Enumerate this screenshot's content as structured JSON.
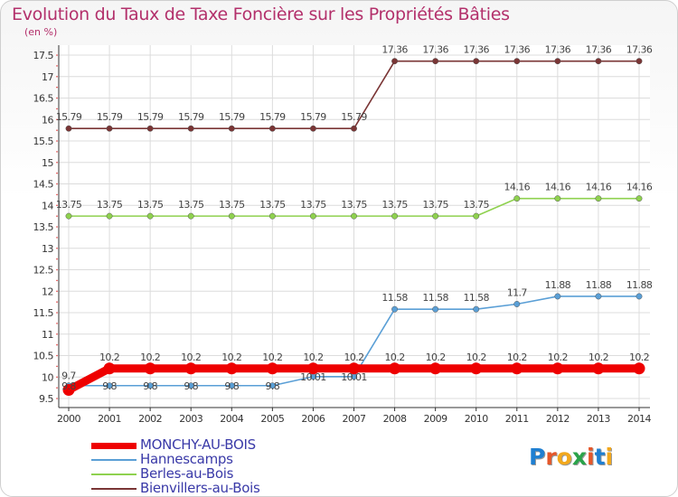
{
  "title": "Evolution du Taux de Taxe Foncière sur les Propriétés Bâties",
  "subtitle": "(en %)",
  "brand": {
    "text": "Proxiti",
    "letter_colors": [
      "#1f7fd1",
      "#e5572a",
      "#f2a81d",
      "#2aa34a",
      "#e5572a",
      "#1f7fd1",
      "#f2a81d"
    ]
  },
  "chart_data": {
    "type": "line",
    "title": "Evolution du Taux de Taxe Foncière sur les Propriétés Bâties",
    "ylabel": "(en %)",
    "xlabel": "",
    "x": [
      "2000",
      "2001",
      "2002",
      "2003",
      "2004",
      "2005",
      "2006",
      "2007",
      "2008",
      "2009",
      "2010",
      "2011",
      "2012",
      "2013",
      "2014"
    ],
    "ylim": [
      9.5,
      17.5
    ],
    "yticks": [
      "9.5",
      "10",
      "10.5",
      "11",
      "11.5",
      "12",
      "12.5",
      "13",
      "13.5",
      "14",
      "14.5",
      "15",
      "15.5",
      "16",
      "16.5",
      "17",
      "17.5"
    ],
    "grid": true,
    "legend_position": "bottom-left",
    "series": [
      {
        "name": "MONCHY-AU-BOIS",
        "color": "#ee0000",
        "values": [
          9.7,
          10.2,
          10.2,
          10.2,
          10.2,
          10.2,
          10.2,
          10.2,
          10.2,
          10.2,
          10.2,
          10.2,
          10.2,
          10.2,
          10.2
        ],
        "labels": [
          "9.7",
          "10.2",
          "10.2",
          "10.2",
          "10.2",
          "10.2",
          "10.2",
          "10.2",
          "10.2",
          "10.2",
          "10.2",
          "10.2",
          "10.2",
          "10.2",
          "10.2"
        ]
      },
      {
        "name": "Hannescamps",
        "color": "#5a9fd6",
        "values": [
          9.8,
          9.8,
          9.8,
          9.8,
          9.8,
          9.8,
          10.01,
          10.01,
          11.58,
          11.58,
          11.58,
          11.7,
          11.88,
          11.88,
          11.88
        ],
        "labels": [
          "9.8",
          "9.8",
          "9.8",
          "9.8",
          "9.8",
          "9.8",
          "10.01",
          "10.01",
          "11.58",
          "11.58",
          "11.58",
          "11.7",
          "11.88",
          "11.88",
          "11.88"
        ]
      },
      {
        "name": "Berles-au-Bois",
        "color": "#8fd14f",
        "values": [
          13.75,
          13.75,
          13.75,
          13.75,
          13.75,
          13.75,
          13.75,
          13.75,
          13.75,
          13.75,
          13.75,
          14.16,
          14.16,
          14.16,
          14.16
        ],
        "labels": [
          "13.75",
          "13.75",
          "13.75",
          "13.75",
          "13.75",
          "13.75",
          "13.75",
          "13.75",
          "13.75",
          "13.75",
          "13.75",
          "14.16",
          "14.16",
          "14.16",
          "14.16"
        ]
      },
      {
        "name": "Bienvillers-au-Bois",
        "color": "#7a3535",
        "values": [
          15.79,
          15.79,
          15.79,
          15.79,
          15.79,
          15.79,
          15.79,
          15.79,
          17.36,
          17.36,
          17.36,
          17.36,
          17.36,
          17.36,
          17.36
        ],
        "labels": [
          "15.79",
          "15.79",
          "15.79",
          "15.79",
          "15.79",
          "15.79",
          "15.79",
          "15.79",
          "17.36",
          "17.36",
          "17.36",
          "17.36",
          "17.36",
          "17.36",
          "17.36"
        ]
      }
    ]
  }
}
